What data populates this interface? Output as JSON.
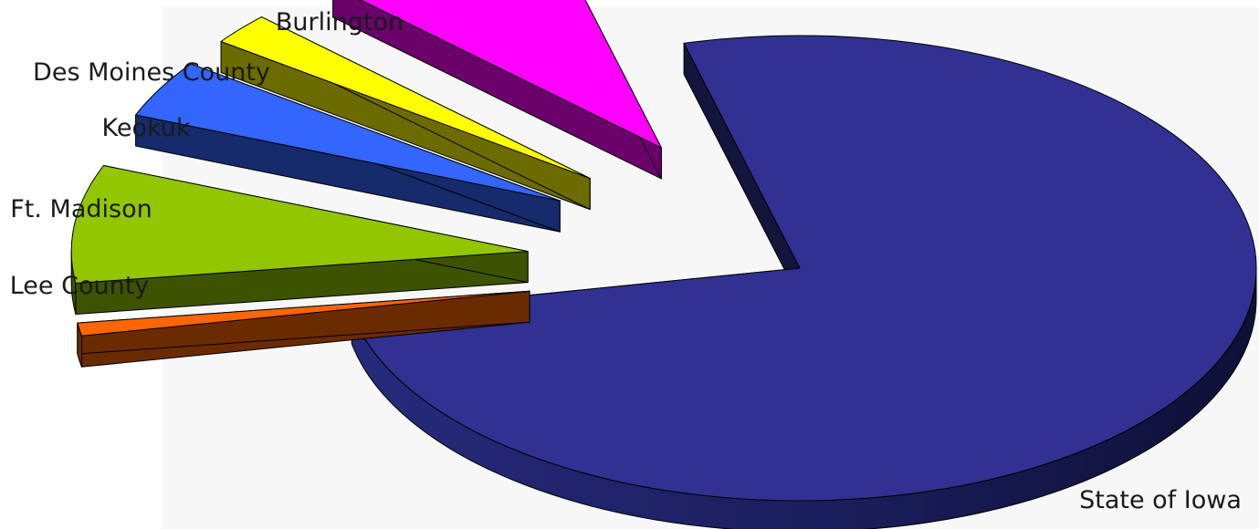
{
  "chart_data": {
    "type": "pie",
    "style": "3d-exploded",
    "labels": [
      "State of Iowa",
      "Lee County",
      "Ft. Madison",
      "Keokuk",
      "Des Moines County",
      "Burlington"
    ],
    "values": [
      76.0,
      0.9,
      8.2,
      4.0,
      2.2,
      8.7
    ],
    "colors": [
      "#303192",
      "#ff6600",
      "#92c600",
      "#3366ff",
      "#ffff00",
      "#ff00ff"
    ],
    "title": "",
    "legend": "none"
  }
}
